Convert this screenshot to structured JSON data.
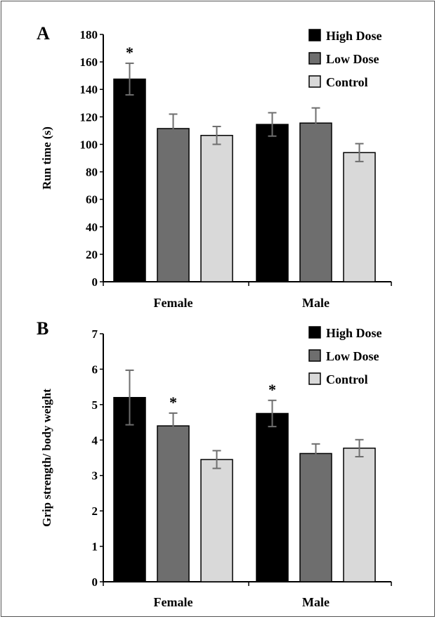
{
  "colors": {
    "high_dose": "#000000",
    "low_dose": "#6e6e6e",
    "control": "#d9d9d9",
    "error_bar": "#6e6e6e"
  },
  "chart_data": [
    {
      "type": "bar",
      "panel_label": "A",
      "ylabel": "Run time (s)",
      "ylim": [
        0,
        180
      ],
      "yticks": [
        "0",
        "20",
        "40",
        "60",
        "80",
        "100",
        "120",
        "140",
        "160",
        "180"
      ],
      "categories": [
        "Female",
        "Male"
      ],
      "legend": {
        "position": "top-right"
      },
      "grid": false,
      "series": [
        {
          "name": "High Dose",
          "values": [
            147.5,
            114.5
          ],
          "errors": [
            11.5,
            8.5
          ],
          "significance": [
            "*",
            ""
          ]
        },
        {
          "name": "Low Dose",
          "values": [
            111.5,
            115.5
          ],
          "errors": [
            10.5,
            11.0
          ],
          "significance": [
            "",
            ""
          ]
        },
        {
          "name": "Control",
          "values": [
            106.5,
            94.0
          ],
          "errors": [
            6.5,
            6.5
          ],
          "significance": [
            "",
            ""
          ]
        }
      ]
    },
    {
      "type": "bar",
      "panel_label": "B",
      "ylabel": "Grip strength/ body weight",
      "ylim": [
        0,
        7
      ],
      "yticks": [
        "0",
        "1",
        "2",
        "3",
        "4",
        "5",
        "6",
        "7"
      ],
      "categories": [
        "Female",
        "Male"
      ],
      "legend": {
        "position": "top-right"
      },
      "grid": false,
      "series": [
        {
          "name": "High Dose",
          "values": [
            5.2,
            4.75
          ],
          "errors": [
            0.77,
            0.37
          ],
          "significance": [
            "",
            "*"
          ]
        },
        {
          "name": "Low Dose",
          "values": [
            4.4,
            3.62
          ],
          "errors": [
            0.36,
            0.27
          ],
          "significance": [
            "*",
            ""
          ]
        },
        {
          "name": "Control",
          "values": [
            3.45,
            3.77
          ],
          "errors": [
            0.25,
            0.24
          ],
          "significance": [
            "",
            ""
          ]
        }
      ]
    }
  ]
}
